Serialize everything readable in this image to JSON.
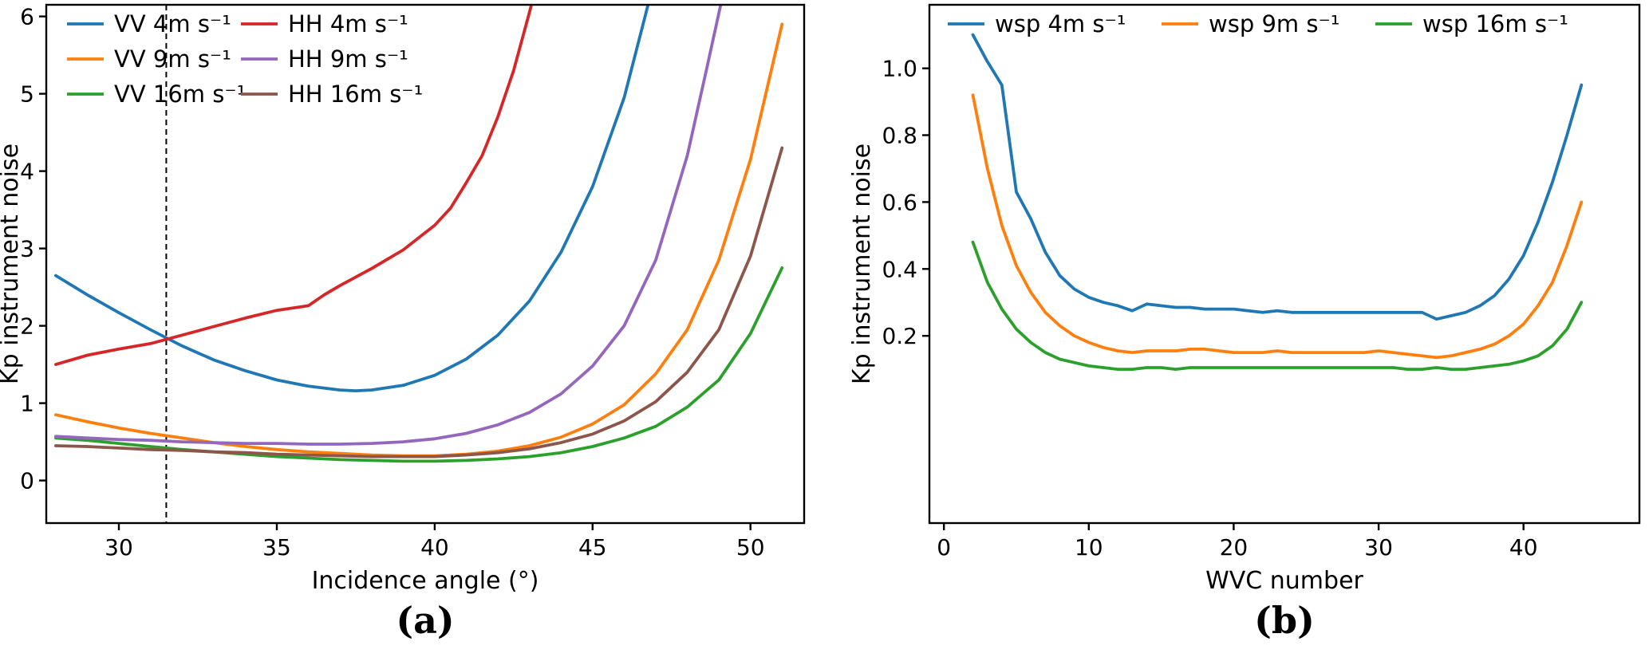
{
  "figure": {
    "background": "#ffffff",
    "caption_a": "(a)",
    "caption_b": "(b)"
  },
  "colors": {
    "blue": "#1f77b4",
    "orange": "#ff7f0e",
    "green": "#2ca02c",
    "red": "#d62728",
    "purple": "#9467bd",
    "brown": "#8c564b"
  },
  "chart_data": [
    {
      "id": "a",
      "type": "line",
      "title": "",
      "xlabel": "Incidence angle (°)",
      "ylabel": "Kp instrument noise",
      "xlim": [
        27.7,
        51.7
      ],
      "ylim": [
        -0.55,
        6.15
      ],
      "xticks": [
        30,
        35,
        40,
        45,
        50
      ],
      "xtick_labels": [
        "30",
        "35",
        "40",
        "45",
        "50"
      ],
      "yticks": [
        0,
        1,
        2,
        3,
        4,
        5,
        6
      ],
      "ytick_labels": [
        "0",
        "1",
        "2",
        "3",
        "4",
        "5",
        "6"
      ],
      "grid": false,
      "legend": {
        "position": "upper left",
        "columns": 2
      },
      "vline": {
        "x": 31.5,
        "style": "dashed",
        "color": "#000000"
      },
      "series": [
        {
          "name": "VV 4m s⁻¹",
          "color": "#1f77b4",
          "x": [
            28,
            29,
            30,
            31,
            32,
            33,
            34,
            35,
            36,
            37,
            37.5,
            38,
            39,
            40,
            41,
            42,
            43,
            44,
            45,
            46,
            46.6,
            47.1
          ],
          "y": [
            2.65,
            2.4,
            2.17,
            1.95,
            1.74,
            1.56,
            1.42,
            1.3,
            1.22,
            1.17,
            1.16,
            1.17,
            1.23,
            1.36,
            1.57,
            1.88,
            2.32,
            2.95,
            3.8,
            4.95,
            5.9,
            6.7
          ]
        },
        {
          "name": "VV 9m s⁻¹",
          "color": "#ff7f0e",
          "x": [
            28,
            29,
            30,
            31,
            32,
            33,
            34,
            35,
            36,
            37,
            38,
            39,
            40,
            41,
            42,
            43,
            44,
            45,
            46,
            47,
            48,
            49,
            50,
            51
          ],
          "y": [
            0.85,
            0.76,
            0.68,
            0.61,
            0.55,
            0.49,
            0.44,
            0.4,
            0.37,
            0.35,
            0.33,
            0.32,
            0.32,
            0.34,
            0.38,
            0.45,
            0.56,
            0.73,
            0.98,
            1.38,
            1.95,
            2.85,
            4.15,
            5.9
          ]
        },
        {
          "name": "VV 16m s⁻¹",
          "color": "#2ca02c",
          "x": [
            28,
            29,
            30,
            31,
            32,
            33,
            34,
            35,
            36,
            37,
            38,
            39,
            40,
            41,
            42,
            43,
            44,
            45,
            46,
            47,
            48,
            49,
            50,
            51
          ],
          "y": [
            0.55,
            0.52,
            0.48,
            0.44,
            0.4,
            0.37,
            0.34,
            0.31,
            0.29,
            0.27,
            0.26,
            0.25,
            0.25,
            0.26,
            0.28,
            0.31,
            0.36,
            0.44,
            0.55,
            0.7,
            0.95,
            1.3,
            1.9,
            2.75
          ]
        },
        {
          "name": "HH 4m s⁻¹",
          "color": "#d62728",
          "x": [
            28,
            29,
            30,
            31,
            32,
            33,
            34,
            35,
            36,
            36.5,
            37,
            38,
            39,
            40,
            40.5,
            41,
            41.5,
            42,
            42.5,
            43,
            43.4
          ],
          "y": [
            1.5,
            1.62,
            1.7,
            1.77,
            1.88,
            1.99,
            2.1,
            2.2,
            2.26,
            2.4,
            2.52,
            2.74,
            2.98,
            3.3,
            3.52,
            3.85,
            4.2,
            4.7,
            5.3,
            6.05,
            6.7
          ]
        },
        {
          "name": "HH 9m s⁻¹",
          "color": "#9467bd",
          "x": [
            28,
            29,
            30,
            31,
            32,
            33,
            34,
            35,
            36,
            37,
            38,
            39,
            40,
            41,
            42,
            43,
            44,
            45,
            46,
            47,
            48,
            48.6,
            49.3
          ],
          "y": [
            0.57,
            0.55,
            0.53,
            0.52,
            0.5,
            0.49,
            0.48,
            0.48,
            0.47,
            0.47,
            0.48,
            0.5,
            0.54,
            0.61,
            0.72,
            0.88,
            1.12,
            1.48,
            2.0,
            2.85,
            4.2,
            5.3,
            6.6
          ]
        },
        {
          "name": "HH 16m s⁻¹",
          "color": "#8c564b",
          "x": [
            28,
            29,
            30,
            31,
            32,
            33,
            34,
            35,
            36,
            37,
            38,
            39,
            40,
            41,
            42,
            43,
            44,
            45,
            46,
            47,
            48,
            49,
            50,
            51
          ],
          "y": [
            0.45,
            0.44,
            0.42,
            0.4,
            0.39,
            0.37,
            0.36,
            0.34,
            0.33,
            0.32,
            0.31,
            0.31,
            0.31,
            0.33,
            0.36,
            0.41,
            0.49,
            0.6,
            0.77,
            1.02,
            1.4,
            1.95,
            2.9,
            4.3
          ]
        }
      ]
    },
    {
      "id": "b",
      "type": "line",
      "title": "",
      "xlabel": "WVC number",
      "ylabel": "Kp instrument noise",
      "xlim": [
        -1,
        48
      ],
      "ylim": [
        -0.36,
        1.19
      ],
      "xticks": [
        0,
        10,
        20,
        30,
        40
      ],
      "xtick_labels": [
        "0",
        "10",
        "20",
        "30",
        "40"
      ],
      "yticks": [
        0.2,
        0.4,
        0.6,
        0.8,
        1.0
      ],
      "ytick_labels": [
        "0.2",
        "0.4",
        "0.6",
        "0.8",
        "1.0"
      ],
      "grid": false,
      "legend": {
        "position": "upper center",
        "columns": 3
      },
      "series": [
        {
          "name": "wsp 4m s⁻¹",
          "color": "#1f77b4",
          "x": [
            2,
            3,
            4,
            5,
            6,
            7,
            8,
            9,
            10,
            11,
            12,
            13,
            14,
            15,
            16,
            17,
            18,
            19,
            20,
            21,
            22,
            23,
            24,
            25,
            26,
            27,
            28,
            29,
            30,
            31,
            32,
            33,
            34,
            35,
            36,
            37,
            38,
            39,
            40,
            41,
            42,
            43,
            44
          ],
          "y": [
            1.1,
            1.02,
            0.95,
            0.63,
            0.55,
            0.45,
            0.38,
            0.34,
            0.315,
            0.3,
            0.29,
            0.275,
            0.295,
            0.29,
            0.285,
            0.285,
            0.28,
            0.28,
            0.28,
            0.275,
            0.27,
            0.275,
            0.27,
            0.27,
            0.27,
            0.27,
            0.27,
            0.27,
            0.27,
            0.27,
            0.27,
            0.27,
            0.25,
            0.26,
            0.27,
            0.29,
            0.32,
            0.37,
            0.44,
            0.54,
            0.66,
            0.8,
            0.95
          ]
        },
        {
          "name": "wsp 9m s⁻¹",
          "color": "#ff7f0e",
          "x": [
            2,
            3,
            4,
            5,
            6,
            7,
            8,
            9,
            10,
            11,
            12,
            13,
            14,
            15,
            16,
            17,
            18,
            19,
            20,
            21,
            22,
            23,
            24,
            25,
            26,
            27,
            28,
            29,
            30,
            31,
            32,
            33,
            34,
            35,
            36,
            37,
            38,
            39,
            40,
            41,
            42,
            43,
            44
          ],
          "y": [
            0.92,
            0.7,
            0.53,
            0.41,
            0.33,
            0.27,
            0.23,
            0.2,
            0.18,
            0.165,
            0.155,
            0.15,
            0.155,
            0.155,
            0.155,
            0.16,
            0.16,
            0.155,
            0.15,
            0.15,
            0.15,
            0.155,
            0.15,
            0.15,
            0.15,
            0.15,
            0.15,
            0.15,
            0.155,
            0.15,
            0.145,
            0.14,
            0.135,
            0.14,
            0.15,
            0.16,
            0.175,
            0.2,
            0.235,
            0.29,
            0.36,
            0.47,
            0.6
          ]
        },
        {
          "name": "wsp 16m s⁻¹",
          "color": "#2ca02c",
          "x": [
            2,
            3,
            4,
            5,
            6,
            7,
            8,
            9,
            10,
            11,
            12,
            13,
            14,
            15,
            16,
            17,
            18,
            19,
            20,
            21,
            22,
            23,
            24,
            25,
            26,
            27,
            28,
            29,
            30,
            31,
            32,
            33,
            34,
            35,
            36,
            37,
            38,
            39,
            40,
            41,
            42,
            43,
            44
          ],
          "y": [
            0.48,
            0.36,
            0.28,
            0.22,
            0.18,
            0.15,
            0.13,
            0.12,
            0.11,
            0.105,
            0.1,
            0.1,
            0.105,
            0.105,
            0.1,
            0.105,
            0.105,
            0.105,
            0.105,
            0.105,
            0.105,
            0.105,
            0.105,
            0.105,
            0.105,
            0.105,
            0.105,
            0.105,
            0.105,
            0.105,
            0.1,
            0.1,
            0.105,
            0.1,
            0.1,
            0.105,
            0.11,
            0.115,
            0.125,
            0.14,
            0.17,
            0.22,
            0.3
          ]
        }
      ]
    }
  ]
}
